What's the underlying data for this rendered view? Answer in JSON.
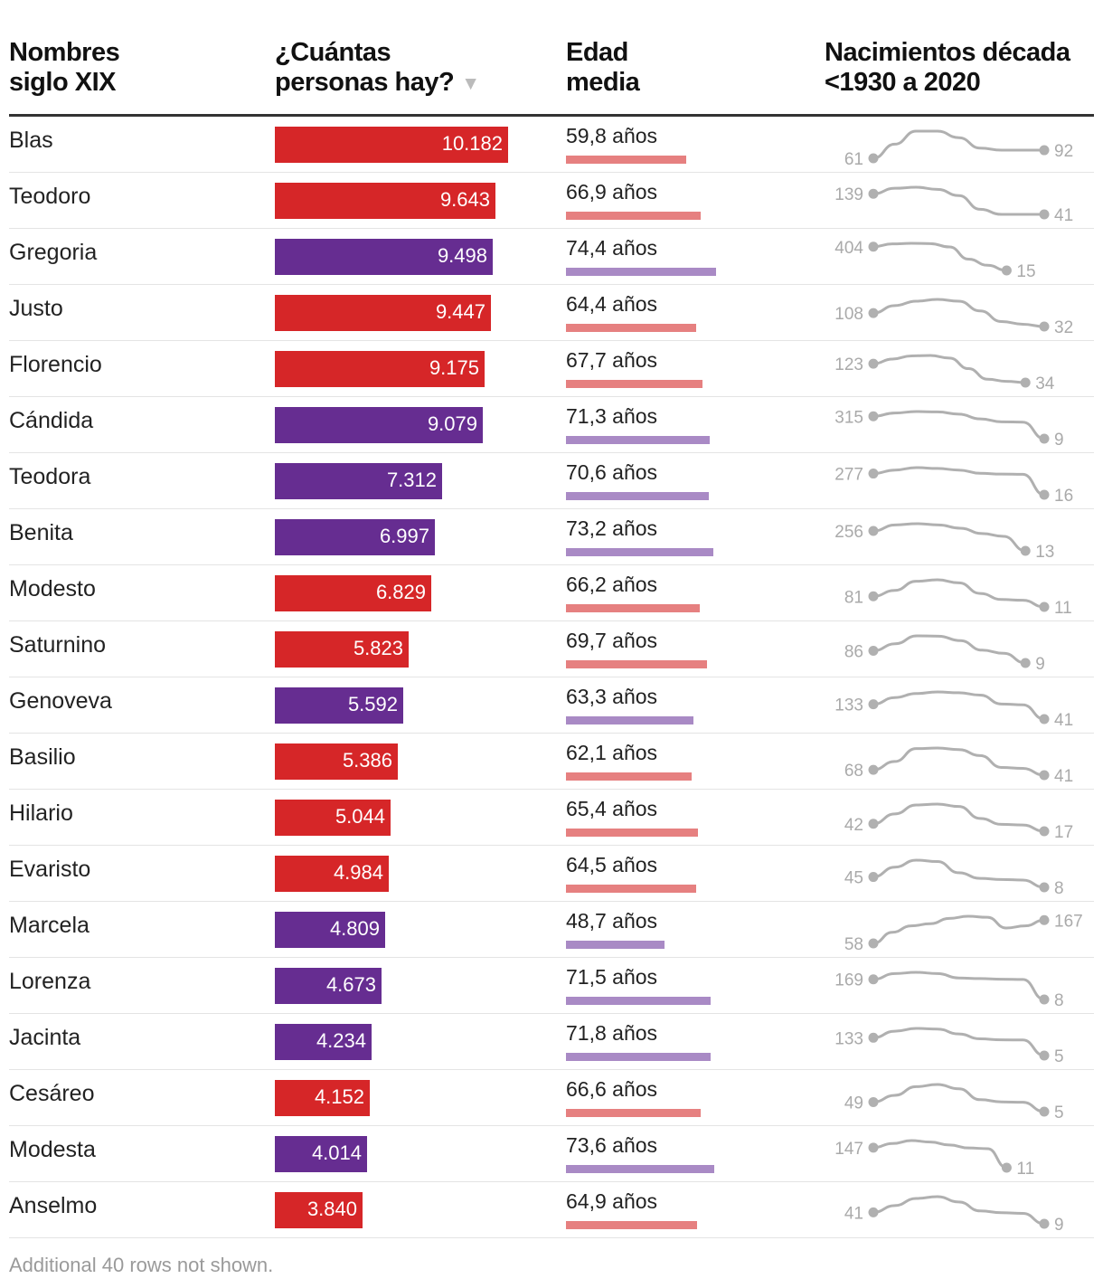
{
  "colors": {
    "male_bar": "#d62628",
    "female_bar": "#662d91",
    "male_age": "#e68080",
    "female_age": "#a98ac5",
    "spark": "#b0b0b0"
  },
  "headers": {
    "name": "Nombres\nsiglo XIX",
    "count": "¿Cuántas\npersonas hay?",
    "age": "Edad\nmedia",
    "births": "Nacimientos década\n<1930 a 2020"
  },
  "sort_icon": "sort-descending-triangle-icon",
  "footer": "Additional 40 rows not shown.",
  "chart_data": {
    "type": "table",
    "age_unit": "años",
    "rows": [
      {
        "name": "Blas",
        "gender": "m",
        "count": 10182,
        "count_label": "10.182",
        "age": 59.8,
        "age_label": "59,8 años",
        "births": [
          61,
          115,
          165,
          165,
          140,
          100,
          92,
          92,
          92
        ],
        "first_label": "61",
        "last_label": "92",
        "births_end": 1.0
      },
      {
        "name": "Teodoro",
        "gender": "m",
        "count": 9643,
        "count_label": "9.643",
        "age": 66.9,
        "age_label": "66,9 años",
        "births": [
          139,
          165,
          170,
          160,
          130,
          65,
          41,
          41,
          41
        ],
        "first_label": "139",
        "last_label": "41",
        "births_end": 1.0
      },
      {
        "name": "Gregoria",
        "gender": "f",
        "count": 9498,
        "count_label": "9.498",
        "age": 74.4,
        "age_label": "74,4 años",
        "births": [
          404,
          450,
          460,
          455,
          400,
          200,
          100,
          15
        ],
        "first_label": "404",
        "last_label": "15",
        "births_end": 0.78
      },
      {
        "name": "Justo",
        "gender": "m",
        "count": 9447,
        "count_label": "9.447",
        "age": 64.4,
        "age_label": "64,4 años",
        "births": [
          108,
          150,
          175,
          185,
          175,
          120,
          60,
          45,
          32
        ],
        "first_label": "108",
        "last_label": "32",
        "births_end": 1.0
      },
      {
        "name": "Florencio",
        "gender": "m",
        "count": 9175,
        "count_label": "9.175",
        "age": 67.7,
        "age_label": "67,7 años",
        "births": [
          123,
          145,
          160,
          162,
          150,
          100,
          50,
          40,
          34
        ],
        "first_label": "123",
        "last_label": "34",
        "births_end": 0.89
      },
      {
        "name": "Cándida",
        "gender": "f",
        "count": 9079,
        "count_label": "9.079",
        "age": 71.3,
        "age_label": "71,3 años",
        "births": [
          315,
          360,
          380,
          375,
          345,
          280,
          240,
          235,
          9
        ],
        "first_label": "315",
        "last_label": "9",
        "births_end": 1.0
      },
      {
        "name": "Teodora",
        "gender": "f",
        "count": 7312,
        "count_label": "7.312",
        "age": 70.6,
        "age_label": "70,6 años",
        "births": [
          277,
          320,
          350,
          340,
          320,
          280,
          270,
          268,
          16
        ],
        "first_label": "277",
        "last_label": "16",
        "births_end": 1.0
      },
      {
        "name": "Benita",
        "gender": "f",
        "count": 6997,
        "count_label": "6.997",
        "age": 73.2,
        "age_label": "73,2 años",
        "births": [
          256,
          330,
          345,
          330,
          290,
          225,
          190,
          13
        ],
        "first_label": "256",
        "last_label": "13",
        "births_end": 0.89
      },
      {
        "name": "Modesto",
        "gender": "m",
        "count": 6829,
        "count_label": "6.829",
        "age": 66.2,
        "age_label": "66,2 años",
        "births": [
          81,
          120,
          180,
          190,
          170,
          100,
          60,
          55,
          11
        ],
        "first_label": "81",
        "last_label": "11",
        "births_end": 1.0
      },
      {
        "name": "Saturnino",
        "gender": "m",
        "count": 5823,
        "count_label": "5.823",
        "age": 69.7,
        "age_label": "69,7 años",
        "births": [
          86,
          130,
          180,
          178,
          150,
          90,
          70,
          9
        ],
        "first_label": "86",
        "last_label": "9",
        "births_end": 0.89
      },
      {
        "name": "Genoveva",
        "gender": "f",
        "count": 5592,
        "count_label": "5.592",
        "age": 63.3,
        "age_label": "63,3 años",
        "births": [
          133,
          175,
          200,
          210,
          205,
          190,
          135,
          130,
          41
        ],
        "first_label": "133",
        "last_label": "41",
        "births_end": 1.0
      },
      {
        "name": "Basilio",
        "gender": "m",
        "count": 5386,
        "count_label": "5.386",
        "age": 62.1,
        "age_label": "62,1 años",
        "births": [
          68,
          110,
          175,
          178,
          170,
          140,
          80,
          75,
          41
        ],
        "first_label": "68",
        "last_label": "41",
        "births_end": 1.0
      },
      {
        "name": "Hilario",
        "gender": "m",
        "count": 5044,
        "count_label": "5.044",
        "age": 65.4,
        "age_label": "65,4 años",
        "births": [
          42,
          75,
          105,
          108,
          100,
          60,
          40,
          38,
          17
        ],
        "first_label": "42",
        "last_label": "17",
        "births_end": 1.0
      },
      {
        "name": "Evaristo",
        "gender": "m",
        "count": 4984,
        "count_label": "4.984",
        "age": 64.5,
        "age_label": "64,5 años",
        "births": [
          45,
          80,
          105,
          100,
          60,
          40,
          36,
          34,
          8
        ],
        "first_label": "45",
        "last_label": "8",
        "births_end": 1.0
      },
      {
        "name": "Marcela",
        "gender": "f",
        "count": 4809,
        "count_label": "4.809",
        "age": 48.7,
        "age_label": "48,7 años",
        "births": [
          58,
          110,
          140,
          150,
          175,
          185,
          180,
          130,
          140,
          167
        ],
        "first_label": "58",
        "last_label": "167",
        "births_end": 1.0
      },
      {
        "name": "Lorenza",
        "gender": "f",
        "count": 4673,
        "count_label": "4.673",
        "age": 71.5,
        "age_label": "71,5 años",
        "births": [
          169,
          215,
          225,
          215,
          180,
          175,
          170,
          168,
          8
        ],
        "first_label": "169",
        "last_label": "8",
        "births_end": 1.0
      },
      {
        "name": "Jacinta",
        "gender": "f",
        "count": 4234,
        "count_label": "4.234",
        "age": 71.8,
        "age_label": "71,8 años",
        "births": [
          133,
          180,
          200,
          195,
          160,
          125,
          118,
          117,
          5
        ],
        "first_label": "133",
        "last_label": "5",
        "births_end": 1.0
      },
      {
        "name": "Cesáreo",
        "gender": "m",
        "count": 4152,
        "count_label": "4.152",
        "age": 66.6,
        "age_label": "66,6 años",
        "births": [
          49,
          80,
          120,
          130,
          110,
          60,
          50,
          48,
          5
        ],
        "first_label": "49",
        "last_label": "5",
        "births_end": 1.0
      },
      {
        "name": "Modesta",
        "gender": "f",
        "count": 4014,
        "count_label": "4.014",
        "age": 73.6,
        "age_label": "73,6 años",
        "births": [
          147,
          175,
          195,
          185,
          165,
          145,
          140,
          11
        ],
        "first_label": "147",
        "last_label": "11",
        "births_end": 0.78
      },
      {
        "name": "Anselmo",
        "gender": "m",
        "count": 3840,
        "count_label": "3.840",
        "age": 64.9,
        "age_label": "64,9 años",
        "births": [
          41,
          60,
          80,
          85,
          70,
          45,
          40,
          38,
          9
        ],
        "first_label": "41",
        "last_label": "9",
        "births_end": 1.0
      }
    ]
  }
}
